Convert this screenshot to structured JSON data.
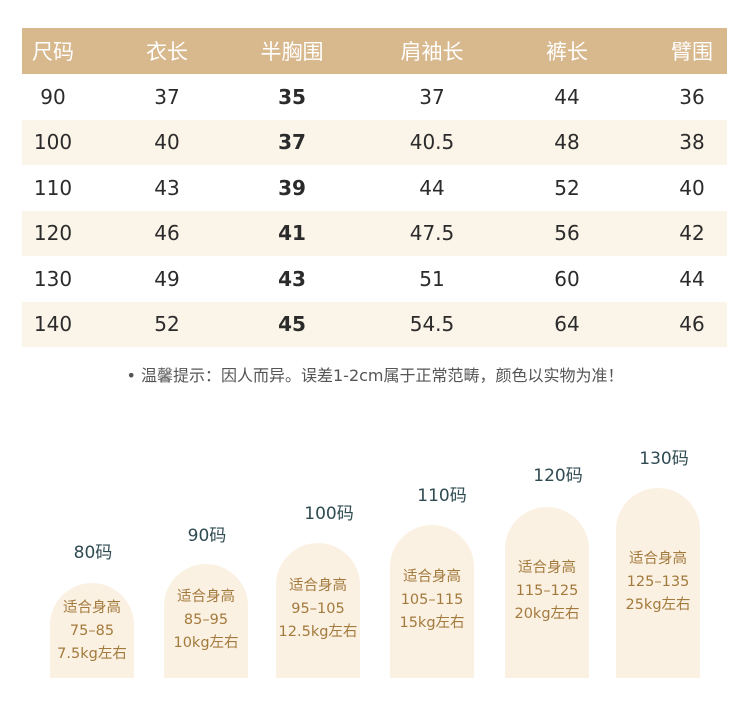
{
  "table": {
    "headers": [
      "尺码",
      "衣长",
      "半胸围",
      "肩袖长",
      "裤长",
      "臂围"
    ],
    "rows": [
      [
        "90",
        "37",
        "35",
        "37",
        "44",
        "36"
      ],
      [
        "100",
        "40",
        "37",
        "40.5",
        "48",
        "38"
      ],
      [
        "110",
        "43",
        "39",
        "44",
        "52",
        "40"
      ],
      [
        "120",
        "46",
        "41",
        "47.5",
        "56",
        "42"
      ],
      [
        "130",
        "49",
        "43",
        "51",
        "60",
        "44"
      ],
      [
        "140",
        "52",
        "45",
        "54.5",
        "64",
        "46"
      ]
    ]
  },
  "tip": "• 温馨提示：因人而异。误差1-2cm属于正常范畴，颜色以实物为准！",
  "sizes": [
    {
      "label": "80码",
      "fit": "适合身高",
      "height": "75–85",
      "weight": "7.5kg左右"
    },
    {
      "label": "90码",
      "fit": "适合身高",
      "height": "85–95",
      "weight": "10kg左右"
    },
    {
      "label": "100码",
      "fit": "适合身高",
      "height": "95–105",
      "weight": "12.5kg左右"
    },
    {
      "label": "110码",
      "fit": "适合身高",
      "height": "105–115",
      "weight": "15kg左右"
    },
    {
      "label": "120码",
      "fit": "适合身高",
      "height": "115–125",
      "weight": "20kg左右"
    },
    {
      "label": "130码",
      "fit": "适合身高",
      "height": "125–135",
      "weight": "25kg左右"
    }
  ],
  "colors": {
    "header_bg": "#d8b88d",
    "row_alt": "#fbf4e8",
    "capsule_bg": "#fbf1e2",
    "capsule_text": "#a37a3d"
  }
}
